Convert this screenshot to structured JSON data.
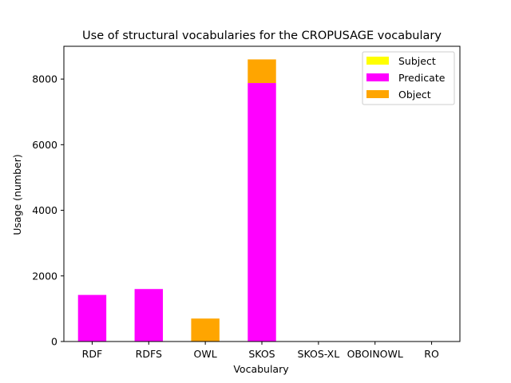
{
  "chart_data": {
    "type": "bar",
    "stacked": true,
    "title": "Use of structural vocabularies for the CROPUSAGE vocabulary",
    "xlabel": "Vocabulary",
    "ylabel": "Usage (number)",
    "categories": [
      "RDF",
      "RDFS",
      "OWL",
      "SKOS",
      "SKOS-XL",
      "OBOINOWL",
      "RO"
    ],
    "ylim": [
      0,
      9000
    ],
    "yticks": [
      0,
      2000,
      4000,
      6000,
      8000
    ],
    "legend_position": "top-right",
    "series": [
      {
        "name": "Subject",
        "color": "#ffff00",
        "values": [
          0,
          0,
          0,
          0,
          0,
          0,
          0
        ]
      },
      {
        "name": "Predicate",
        "color": "#ff00ff",
        "values": [
          1420,
          1600,
          0,
          7880,
          0,
          0,
          0
        ]
      },
      {
        "name": "Object",
        "color": "#ffa500",
        "values": [
          0,
          0,
          700,
          720,
          0,
          0,
          0
        ]
      }
    ]
  }
}
